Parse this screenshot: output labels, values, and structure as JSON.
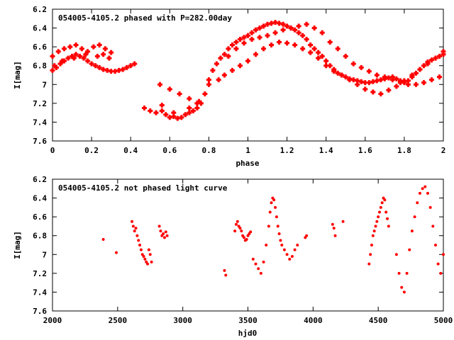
{
  "chart_data": [
    {
      "type": "scatter",
      "title": "054005-4105.2 phased with P=282.00day",
      "xlabel": "phase",
      "ylabel": "I[mag]",
      "xlim": [
        0,
        2
      ],
      "ylim": [
        7.6,
        6.2
      ],
      "y_inverted": true,
      "grid": false,
      "marker_color": "#ff0000",
      "x_ticks": [
        "0",
        "0.2",
        "0.4",
        "0.6",
        "0.8",
        "1",
        "1.2",
        "1.4",
        "1.6",
        "1.8",
        "2"
      ],
      "y_ticks": [
        "6.2",
        "6.4",
        "6.6",
        "6.8",
        "7",
        "7.2",
        "7.4",
        "7.6"
      ],
      "x": [
        0.0,
        0.02,
        0.04,
        0.06,
        0.08,
        0.1,
        0.12,
        0.14,
        0.16,
        0.18,
        0.2,
        0.22,
        0.24,
        0.26,
        0.28,
        0.3,
        0.32,
        0.34,
        0.36,
        0.38,
        0.4,
        0.42,
        0.47,
        0.5,
        0.53,
        0.56,
        0.58,
        0.6,
        0.62,
        0.64,
        0.66,
        0.68,
        0.7,
        0.72,
        0.74,
        0.76,
        0.78,
        0.8,
        0.82,
        0.84,
        0.86,
        0.88,
        0.9,
        0.92,
        0.94,
        0.96,
        0.98,
        1.0,
        1.02,
        1.04,
        1.06,
        1.08,
        1.1,
        1.12,
        1.14,
        1.16,
        1.18,
        1.2,
        1.22,
        1.24,
        1.26,
        1.28,
        1.3,
        1.32,
        1.34,
        1.36,
        1.38,
        1.4,
        1.42,
        1.44,
        1.46,
        1.48,
        1.5,
        1.52,
        1.54,
        1.56,
        1.58,
        1.6,
        1.62,
        1.64,
        1.66,
        1.68,
        1.7,
        1.72,
        1.74,
        1.76,
        1.78,
        1.8,
        1.82,
        1.84,
        1.86,
        1.88,
        1.9,
        1.92,
        1.94,
        1.96,
        1.98,
        2.0,
        0.0,
        0.03,
        0.06,
        0.09,
        0.12,
        0.15,
        0.18,
        0.21,
        0.24,
        0.27,
        0.3,
        0.55,
        0.6,
        0.65,
        0.7,
        0.75,
        0.8,
        0.85,
        0.88,
        0.92,
        0.96,
        1.0,
        1.04,
        1.08,
        1.12,
        1.16,
        1.2,
        1.24,
        1.28,
        1.32,
        1.36,
        1.4,
        1.44,
        1.48,
        1.52,
        1.56,
        1.6,
        1.64,
        1.68,
        1.72,
        1.76,
        1.8,
        1.84,
        1.88,
        1.92,
        1.96,
        2.0,
        0.01,
        0.05,
        0.11,
        0.17,
        0.23,
        0.26,
        0.29,
        0.56,
        0.62,
        0.7,
        0.74,
        0.9,
        0.94,
        0.98,
        1.02,
        1.06,
        1.1,
        1.14,
        1.18,
        1.22,
        1.26,
        1.3,
        1.34,
        1.38,
        1.42,
        1.46,
        1.5,
        1.54,
        1.58,
        1.62,
        1.66,
        1.7,
        1.74,
        1.78,
        1.82,
        1.86,
        1.9,
        1.94,
        1.98
      ],
      "y": [
        6.85,
        6.82,
        6.78,
        6.75,
        6.72,
        6.7,
        6.68,
        6.7,
        6.72,
        6.75,
        6.78,
        6.8,
        6.82,
        6.84,
        6.85,
        6.86,
        6.86,
        6.85,
        6.84,
        6.82,
        6.8,
        6.78,
        7.25,
        7.28,
        7.3,
        7.28,
        7.32,
        7.35,
        7.34,
        7.36,
        7.35,
        7.32,
        7.3,
        7.28,
        7.25,
        7.2,
        7.1,
        6.95,
        6.85,
        6.78,
        6.72,
        6.68,
        6.62,
        6.58,
        6.55,
        6.52,
        6.5,
        6.48,
        6.45,
        6.42,
        6.4,
        6.38,
        6.36,
        6.35,
        6.34,
        6.35,
        6.36,
        6.38,
        6.4,
        6.42,
        6.45,
        6.48,
        6.52,
        6.58,
        6.62,
        6.66,
        6.7,
        6.75,
        6.8,
        6.84,
        6.88,
        6.9,
        6.92,
        6.94,
        6.95,
        6.96,
        6.97,
        6.98,
        6.98,
        6.97,
        6.96,
        6.95,
        6.94,
        6.93,
        6.92,
        6.94,
        6.96,
        6.98,
        6.96,
        6.92,
        6.88,
        6.84,
        6.8,
        6.76,
        6.74,
        6.72,
        6.7,
        6.68,
        6.7,
        6.65,
        6.62,
        6.6,
        6.58,
        6.62,
        6.65,
        6.6,
        6.58,
        6.62,
        6.66,
        7.0,
        7.05,
        7.1,
        7.15,
        7.18,
        7.0,
        6.95,
        6.9,
        6.85,
        6.8,
        6.75,
        6.68,
        6.62,
        6.58,
        6.55,
        6.56,
        6.58,
        6.62,
        6.66,
        6.72,
        6.8,
        6.86,
        6.9,
        6.95,
        7.0,
        7.05,
        7.08,
        7.1,
        7.06,
        7.02,
        6.96,
        6.9,
        6.84,
        6.78,
        6.72,
        6.65,
        6.8,
        6.75,
        6.72,
        6.68,
        6.7,
        6.68,
        6.72,
        7.22,
        7.3,
        7.25,
        7.2,
        6.7,
        6.62,
        6.56,
        6.52,
        6.5,
        6.48,
        6.45,
        6.42,
        6.4,
        6.38,
        6.36,
        6.4,
        6.45,
        6.55,
        6.62,
        6.7,
        6.78,
        6.82,
        6.86,
        6.9,
        6.92,
        6.95,
        6.98,
        7.0,
        7.0,
        6.98,
        6.95,
        6.92
      ]
    },
    {
      "type": "scatter",
      "title": "054005-4105.2 not phased light curve",
      "xlabel": "hjd0",
      "ylabel": "I[mag]",
      "xlim": [
        2000,
        5000
      ],
      "ylim": [
        7.6,
        6.2
      ],
      "y_inverted": true,
      "grid": false,
      "marker_color": "#ff0000",
      "x_ticks": [
        "2000",
        "2500",
        "3000",
        "3500",
        "4000",
        "4500",
        "5000"
      ],
      "y_ticks": [
        "6.2",
        "6.4",
        "6.6",
        "6.8",
        "7",
        "7.2",
        "7.4",
        "7.6"
      ],
      "x": [
        2390,
        2490,
        2610,
        2620,
        2630,
        2640,
        2650,
        2660,
        2670,
        2680,
        2690,
        2700,
        2710,
        2720,
        2730,
        2740,
        2750,
        2760,
        2820,
        2830,
        2840,
        2850,
        2860,
        2870,
        2880,
        3320,
        3330,
        3400,
        3410,
        3420,
        3430,
        3440,
        3450,
        3460,
        3470,
        3480,
        3490,
        3500,
        3510,
        3520,
        3540,
        3560,
        3580,
        3600,
        3620,
        3640,
        3660,
        3670,
        3680,
        3690,
        3700,
        3710,
        3720,
        3730,
        3740,
        3750,
        3760,
        3780,
        3800,
        3820,
        3840,
        3860,
        3880,
        3940,
        3950,
        4150,
        4160,
        4170,
        4230,
        4430,
        4440,
        4450,
        4460,
        4470,
        4480,
        4490,
        4500,
        4510,
        4520,
        4530,
        4540,
        4550,
        4560,
        4570,
        4580,
        4640,
        4660,
        4680,
        4700,
        4720,
        4740,
        4760,
        4780,
        4800,
        4820,
        4840,
        4860,
        4880,
        4900,
        4920,
        4940,
        4960,
        4980,
        5000
      ],
      "y": [
        6.84,
        6.98,
        6.65,
        6.7,
        6.75,
        6.72,
        6.8,
        6.85,
        6.9,
        6.95,
        7.0,
        7.02,
        7.05,
        7.08,
        7.1,
        6.95,
        7.0,
        7.08,
        6.7,
        6.75,
        6.8,
        6.78,
        6.82,
        6.76,
        6.8,
        7.17,
        7.22,
        6.75,
        6.68,
        6.65,
        6.7,
        6.72,
        6.75,
        6.8,
        6.82,
        6.85,
        6.84,
        6.8,
        6.78,
        6.76,
        7.05,
        7.1,
        7.15,
        7.2,
        7.08,
        6.9,
        6.7,
        6.55,
        6.45,
        6.4,
        6.42,
        6.5,
        6.6,
        6.7,
        6.78,
        6.85,
        6.9,
        6.95,
        7.0,
        7.05,
        7.02,
        6.95,
        6.9,
        6.82,
        6.8,
        6.68,
        6.72,
        6.8,
        6.65,
        7.1,
        7.0,
        6.9,
        6.8,
        6.75,
        6.7,
        6.65,
        6.6,
        6.55,
        6.5,
        6.45,
        6.4,
        6.42,
        6.55,
        6.62,
        6.7,
        7.0,
        7.2,
        7.35,
        7.4,
        7.2,
        6.95,
        6.75,
        6.6,
        6.45,
        6.35,
        6.3,
        6.28,
        6.35,
        6.5,
        6.7,
        6.9,
        7.1,
        7.2,
        7.0
      ]
    }
  ]
}
